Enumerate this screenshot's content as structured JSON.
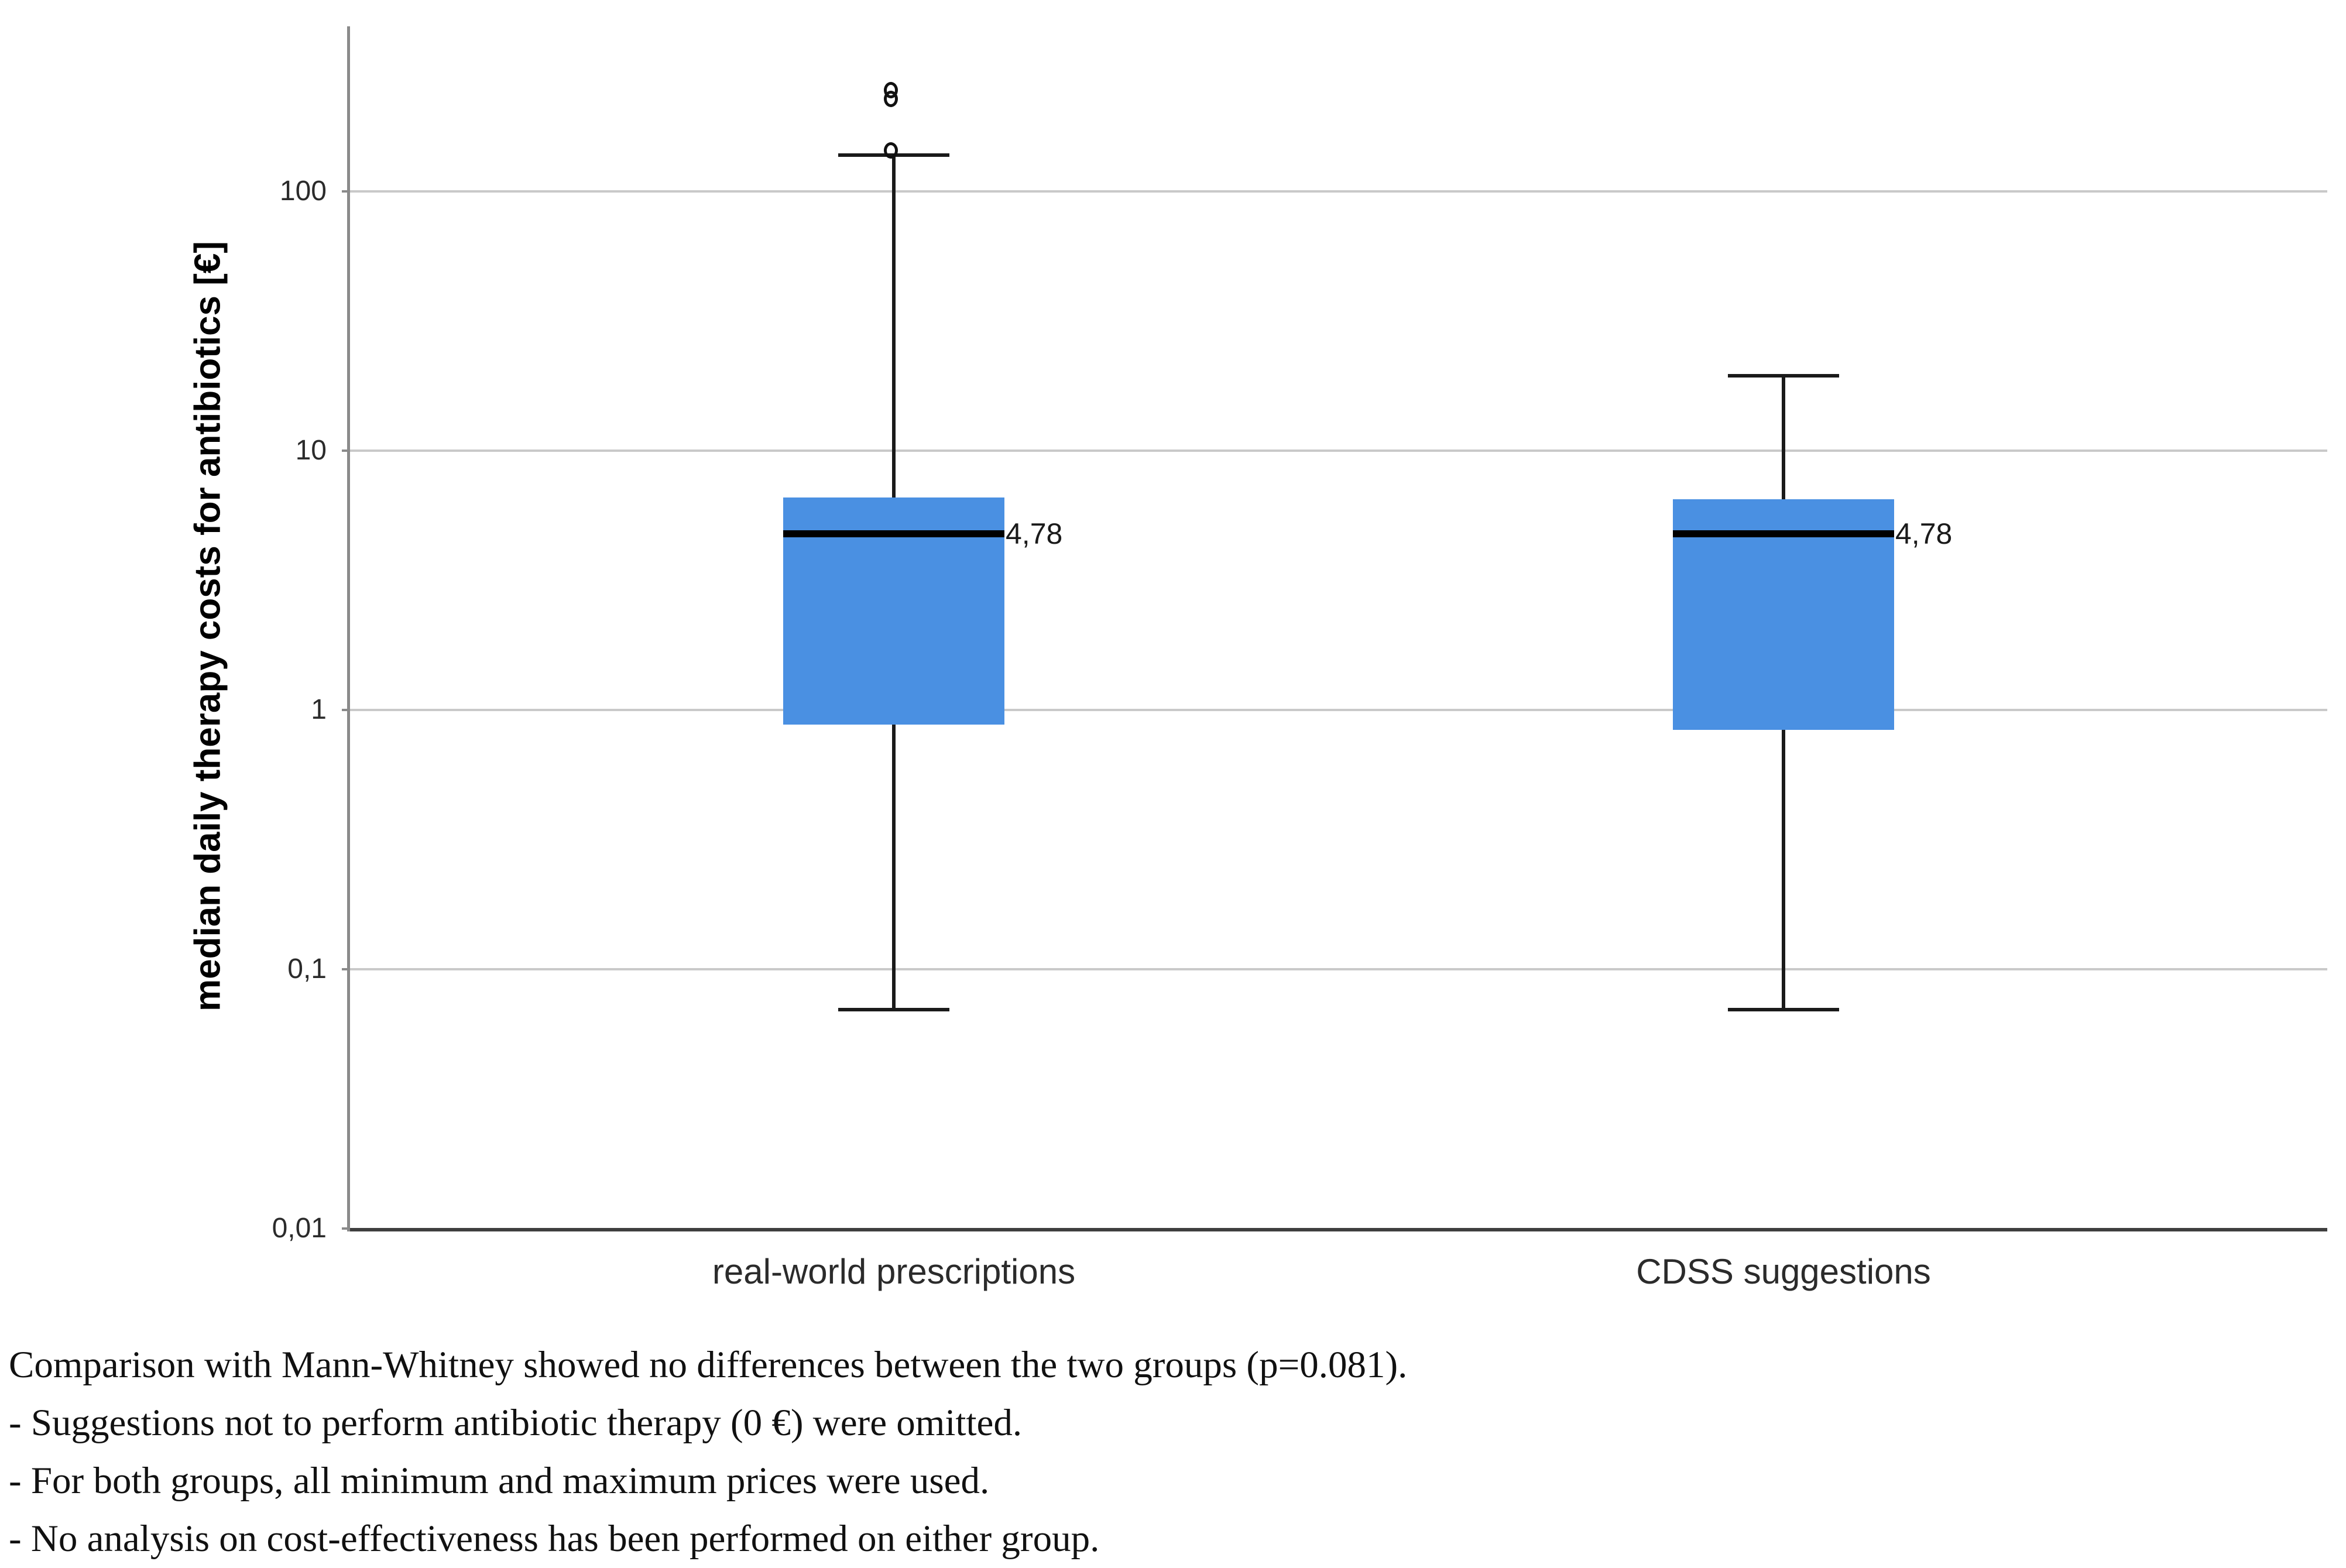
{
  "chart_data": {
    "type": "boxplot",
    "title": "",
    "xlabel": "",
    "ylabel": "median daily therapy costs for antibiotics [€]",
    "y_scale": "log",
    "y_range": {
      "min": 0.01,
      "max": 433
    },
    "y_ticks": [
      {
        "label": "100",
        "value": 100
      },
      {
        "label": "10",
        "value": 10
      },
      {
        "label": "1",
        "value": 1
      },
      {
        "label": "0,1",
        "value": 0.1
      },
      {
        "label": "0,01",
        "value": 0.01
      }
    ],
    "grid": true,
    "legend": "none",
    "box_color": "#4a90e2",
    "line_color": "#1a1a1a",
    "categories": [
      "real-world prescriptions",
      "CDSS suggestions"
    ],
    "groups": [
      {
        "label": "real-world prescriptions",
        "whisker_low": 0.07,
        "q1": 0.88,
        "median": 4.78,
        "q3": 6.6,
        "whisker_high": 138,
        "outliers": [
          240,
          222,
          140
        ],
        "median_label": "4,78"
      },
      {
        "label": "CDSS suggestions",
        "whisker_low": 0.07,
        "q1": 0.84,
        "median": 4.78,
        "q3": 6.5,
        "whisker_high": 19.4,
        "outliers": [],
        "median_label": "4,78"
      }
    ]
  },
  "caption": {
    "lines": [
      "Comparison with Mann-Whitney showed no differences between the two groups (p=0.081).",
      "- Suggestions not to perform antibiotic therapy (0 €) were omitted.",
      "- For both groups, all minimum and maximum prices were used.",
      "- No analysis on cost-effectiveness has been performed on either group."
    ]
  }
}
